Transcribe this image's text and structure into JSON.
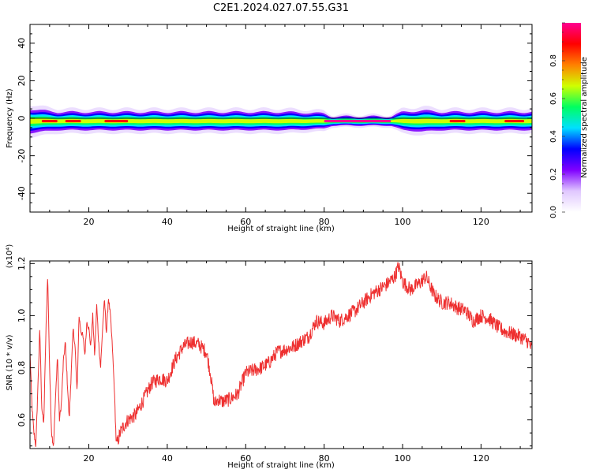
{
  "title": "C2E1.2024.027.07.55.G31",
  "chart_data": [
    {
      "type": "heatmap",
      "xlabel": "Height of straight line (km)",
      "ylabel": "Frequency (Hz)",
      "xlim": [
        5,
        133
      ],
      "ylim": [
        -50,
        50
      ],
      "xticks": [
        20,
        40,
        60,
        80,
        100,
        120
      ],
      "yticks": [
        -40,
        -20,
        0,
        20,
        40
      ],
      "colorbar": {
        "label": "Normalized spectral amplitude",
        "range": [
          0,
          1
        ],
        "ticks": [
          "0.0",
          "0.2",
          "0.4",
          "0.6",
          "0.8"
        ],
        "colormap": [
          "#ffffff",
          "#e0c8ff",
          "#8000ff",
          "#0000ff",
          "#00e0ff",
          "#00ff60",
          "#d0ff00",
          "#ff8000",
          "#ff0000",
          "#ff0090"
        ]
      },
      "band": {
        "center_freq": -1.5,
        "x": [
          5,
          8,
          12,
          20,
          30,
          50,
          70,
          80,
          82,
          97,
          100,
          105,
          110,
          120,
          130,
          133
        ],
        "halfwidth": [
          4,
          3.5,
          3,
          3,
          3,
          3,
          3,
          2.5,
          1.5,
          1.5,
          3,
          3.5,
          3,
          3,
          3,
          3
        ]
      }
    },
    {
      "type": "line",
      "xlabel": "Height of straight line (km)",
      "ylabel": "SNR (10 * v/v)",
      "multiplier": "(x10⁴)",
      "xlim": [
        5,
        133
      ],
      "ylim": [
        0.49,
        1.21
      ],
      "xticks": [
        20,
        40,
        60,
        80,
        100,
        120
      ],
      "yticks": [
        0.6,
        0.8,
        1.0,
        1.2
      ],
      "color": "#ee3030",
      "series": [
        {
          "x": [
            5,
            5.5,
            6,
            6.5,
            7,
            7.5,
            8,
            8.5,
            9,
            9.5,
            10,
            10.5,
            11,
            11.5,
            12,
            12.5,
            13,
            13.5,
            14,
            14.5,
            15,
            15.5,
            16,
            16.5,
            17,
            17.5,
            18,
            18.5,
            19,
            19.5,
            20,
            20.5,
            21,
            21.5,
            22,
            22.5,
            23,
            23.5,
            24,
            24.5,
            25,
            25.5,
            26,
            26.5,
            27,
            28,
            29,
            30,
            32,
            34,
            36,
            38,
            40,
            42,
            44,
            46,
            48,
            50,
            51,
            52,
            53,
            54,
            56,
            58,
            60,
            62,
            64,
            66,
            68,
            70,
            72,
            74,
            76,
            78,
            80,
            82,
            84,
            86,
            88,
            90,
            92,
            94,
            96,
            98,
            99,
            100,
            102,
            104,
            106,
            108,
            110,
            112,
            114,
            116,
            118,
            120,
            122,
            124,
            126,
            128,
            130,
            132,
            133
          ],
          "y": [
            0.86,
            0.65,
            0.55,
            0.5,
            0.72,
            0.95,
            0.65,
            0.58,
            0.9,
            1.16,
            0.8,
            0.55,
            0.5,
            0.68,
            0.85,
            0.6,
            0.66,
            0.82,
            0.9,
            0.75,
            0.6,
            0.78,
            0.95,
            0.88,
            0.7,
            1.0,
            0.94,
            0.92,
            0.85,
            0.98,
            0.95,
            0.88,
            1.0,
            0.84,
            1.04,
            0.9,
            0.8,
            0.95,
            1.06,
            0.93,
            1.07,
            1.0,
            0.88,
            0.72,
            0.5,
            0.55,
            0.58,
            0.6,
            0.62,
            0.68,
            0.74,
            0.76,
            0.75,
            0.83,
            0.88,
            0.9,
            0.89,
            0.86,
            0.78,
            0.66,
            0.68,
            0.67,
            0.68,
            0.7,
            0.78,
            0.79,
            0.8,
            0.82,
            0.86,
            0.87,
            0.88,
            0.9,
            0.92,
            0.98,
            0.97,
            1.0,
            0.98,
            1.0,
            1.02,
            1.05,
            1.08,
            1.1,
            1.12,
            1.15,
            1.19,
            1.13,
            1.1,
            1.12,
            1.15,
            1.08,
            1.05,
            1.05,
            1.03,
            1.02,
            0.98,
            1.0,
            0.99,
            0.96,
            0.94,
            0.93,
            0.92,
            0.9,
            0.87
          ]
        }
      ]
    }
  ]
}
